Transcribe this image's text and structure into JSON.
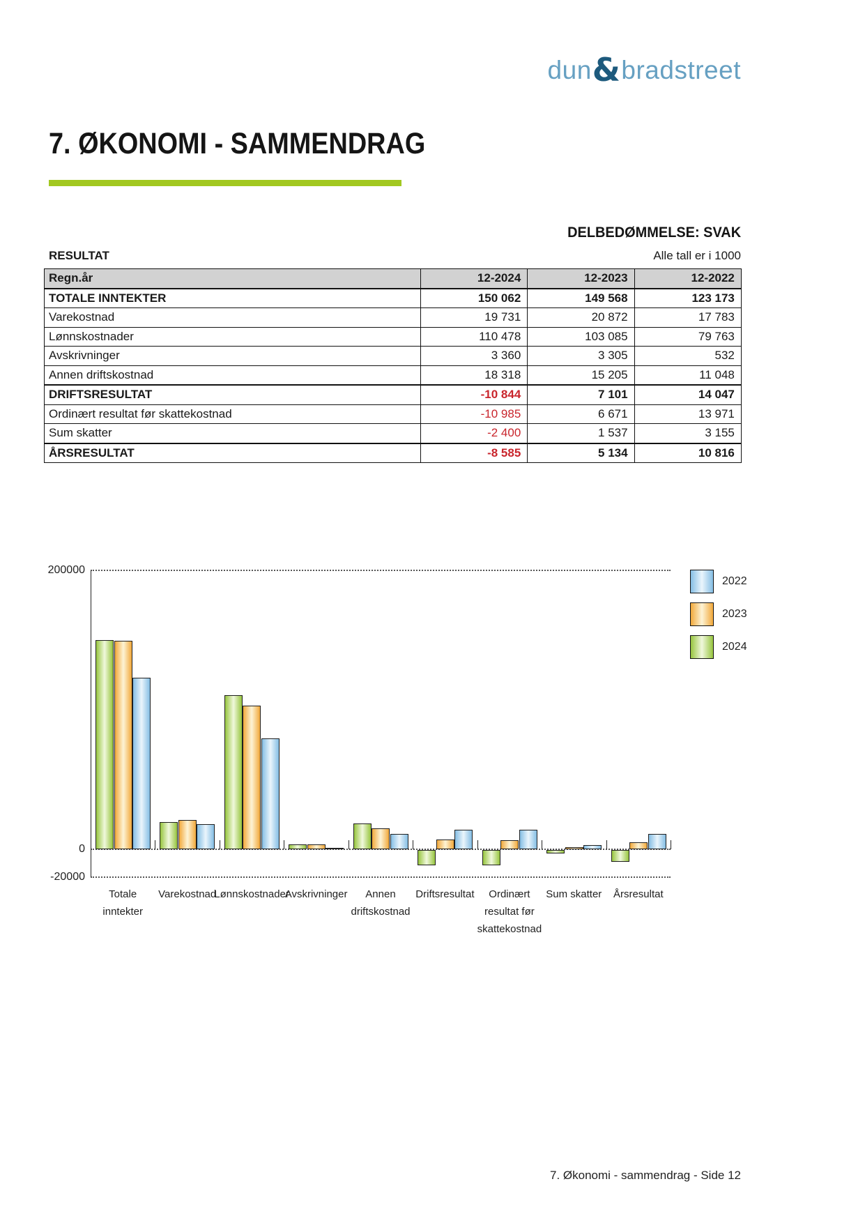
{
  "logo": {
    "dun": "dun",
    "amp": "&",
    "bradstreet": "bradstreet"
  },
  "header": {
    "title": "7. ØKONOMI - SAMMENDRAG"
  },
  "assessment": {
    "label": "DELBEDØMMELSE: SVAK"
  },
  "result_section": {
    "label": "RESULTAT",
    "note": "Alle tall er i 1000"
  },
  "table": {
    "header": [
      "Regn.år",
      "12-2024",
      "12-2023",
      "12-2022"
    ],
    "rows": [
      {
        "label": "TOTALE INNTEKTER",
        "values": [
          "150 062",
          "149 568",
          "123 173"
        ],
        "bold": true,
        "thick": false
      },
      {
        "label": "Varekostnad",
        "values": [
          "19 731",
          "20 872",
          "17 783"
        ],
        "bold": false,
        "thick": false
      },
      {
        "label": "Lønnskostnader",
        "values": [
          "110 478",
          "103 085",
          "79 763"
        ],
        "bold": false,
        "thick": false
      },
      {
        "label": "Avskrivninger",
        "values": [
          "3 360",
          "3 305",
          "532"
        ],
        "bold": false,
        "thick": false
      },
      {
        "label": "Annen driftskostnad",
        "values": [
          "18 318",
          "15 205",
          "11 048"
        ],
        "bold": false,
        "thick": false
      },
      {
        "label": "DRIFTSRESULTAT",
        "values": [
          "-10 844",
          "7 101",
          "14 047"
        ],
        "bold": true,
        "thick": true
      },
      {
        "label": "Ordinært resultat før skattekostnad",
        "values": [
          "-10 985",
          "6 671",
          "13 971"
        ],
        "bold": false,
        "thick": false
      },
      {
        "label": "Sum skatter",
        "values": [
          "-2 400",
          "1 537",
          "3 155"
        ],
        "bold": false,
        "thick": false
      },
      {
        "label": "ÅRSRESULTAT",
        "values": [
          "-8 585",
          "5 134",
          "10 816"
        ],
        "bold": true,
        "thick": true
      }
    ]
  },
  "chart_data": {
    "type": "bar",
    "title": "",
    "xlabel": "",
    "ylabel": "",
    "categories": [
      "Totale\ninntekter",
      "Varekostnad",
      "Lønnskostnader",
      "Avskrivninger",
      "Annen\ndriftskostnad",
      "Driftsresultat",
      "Ordinært\nresultat før\nskattekostnad",
      "Sum skatter",
      "Årsresultat"
    ],
    "series": [
      {
        "name": "2024",
        "values": [
          150062,
          19731,
          110478,
          3360,
          18318,
          -10844,
          -10985,
          -2400,
          -8585
        ],
        "edge": "#97C53F",
        "center": "#F0F8DC"
      },
      {
        "name": "2023",
        "values": [
          149568,
          20872,
          103085,
          3305,
          15205,
          7101,
          6671,
          1537,
          5134
        ],
        "edge": "#F2A93B",
        "center": "#FDF3D5"
      },
      {
        "name": "2022",
        "values": [
          123173,
          17783,
          79763,
          532,
          11048,
          14047,
          13971,
          3155,
          10816
        ],
        "edge": "#85BEE4",
        "center": "#EAF5FC"
      }
    ],
    "legend": [
      "2022",
      "2023",
      "2024"
    ],
    "legend_position": "top-right",
    "ylim": [
      -20000,
      200000
    ],
    "yticks": [
      {
        "value": 200000,
        "label": "200000"
      },
      {
        "value": 0,
        "label": "0"
      },
      {
        "value": -20000,
        "label": "-20000"
      }
    ],
    "grid": "dotted-horizontal"
  },
  "footer": {
    "text": "7. Økonomi - sammendrag - Side 12"
  },
  "colors": {
    "accent_green": "#A2C821",
    "negative_red": "#C9252C",
    "table_header_bg": "#D2D2D2",
    "logo_light_blue": "#66A0C2",
    "logo_dark_blue": "#1D5A7D"
  }
}
